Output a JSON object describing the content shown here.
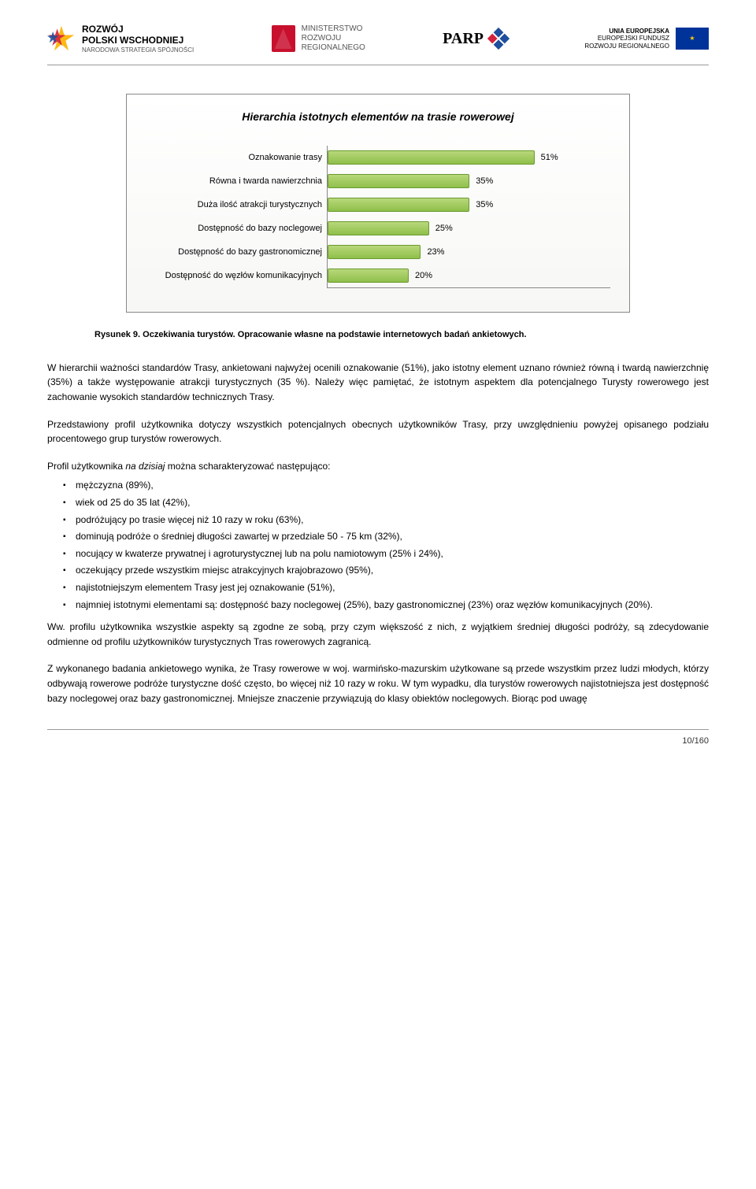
{
  "header": {
    "logo1_line1": "ROZWÓJ",
    "logo1_line2": "POLSKI WSCHODNIEJ",
    "logo1_sub": "NARODOWA STRATEGIA SPÓJNOŚCI",
    "logo2_line1": "MINISTERSTWO",
    "logo2_line2": "ROZWOJU",
    "logo2_line3": "REGIONALNEGO",
    "logo3": "PARP",
    "logo4_line1": "UNIA EUROPEJSKA",
    "logo4_line2": "EUROPEJSKI FUNDUSZ",
    "logo4_line3": "ROZWOJU REGIONALNEGO"
  },
  "chart": {
    "type": "horizontal-bar",
    "title": "Hierarchia istotnych elementów na trasie rowerowej",
    "categories": [
      "Oznakowanie trasy",
      "Równa i twarda nawierzchnia",
      "Duża ilość atrakcji turystycznych",
      "Dostępność do bazy noclegowej",
      "Dostępność do bazy gastronomicznej",
      "Dostępność do węzłów komunikacyjnych"
    ],
    "values": [
      51,
      35,
      35,
      25,
      23,
      20
    ],
    "value_labels": [
      "51%",
      "35%",
      "35%",
      "25%",
      "23%",
      "20%"
    ],
    "xmax": 60,
    "bar_color_top": "#b8d87a",
    "bar_color_bottom": "#8fbf4a",
    "bar_border": "#6a9a2f",
    "axis_color": "#888888",
    "background_gradient_top": "#ffffff",
    "background_gradient_bottom": "#f7f7f5",
    "label_fontsize": 11,
    "title_fontsize": 14
  },
  "caption": "Rysunek 9. Oczekiwania turystów. Opracowanie własne na podstawie internetowych badań ankietowych.",
  "para1": "W hierarchii ważności standardów Trasy, ankietowani najwyżej ocenili oznakowanie (51%), jako istotny element uznano również równą i twardą nawierzchnię (35%) a także występowanie atrakcji turystycznych (35 %). Należy więc pamiętać, że istotnym aspektem dla potencjalnego Turysty rowerowego jest zachowanie wysokich standardów technicznych Trasy.",
  "para2": "Przedstawiony profil użytkownika dotyczy wszystkich potencjalnych obecnych użytkowników Trasy, przy uwzględnieniu powyżej opisanego podziału procentowego grup turystów rowerowych.",
  "para3_prefix": "Profil użytkownika ",
  "para3_italic": "na dzisiaj",
  "para3_suffix": " można scharakteryzować następująco:",
  "bullets": [
    "mężczyzna (89%),",
    "wiek od 25 do 35 lat (42%),",
    "podróżujący po trasie więcej niż 10 razy w roku (63%),",
    "dominują podróże o średniej długości zawartej w przedziale 50 - 75 km (32%),",
    "nocujący w kwaterze prywatnej i agroturystycznej lub na polu namiotowym (25% i 24%),",
    "oczekujący przede wszystkim miejsc atrakcyjnych krajobrazowo (95%),",
    "najistotniejszym elementem Trasy jest jej oznakowanie (51%),",
    "najmniej istotnymi elementami są: dostępność bazy noclegowej (25%), bazy gastronomicznej (23%) oraz węzłów komunikacyjnych (20%)."
  ],
  "para4": "Ww. profilu użytkownika wszystkie aspekty są zgodne ze sobą, przy czym większość z nich, z wyjątkiem średniej długości podróży, są zdecydowanie odmienne od profilu użytkowników turystycznych Tras rowerowych zagranicą.",
  "para5": "Z wykonanego badania ankietowego wynika, że Trasy rowerowe w woj. warmińsko-mazurskim użytkowane są przede wszystkim przez ludzi młodych, którzy odbywają rowerowe podróże turystyczne dość często, bo więcej niż 10 razy w roku. W tym wypadku, dla turystów rowerowych najistotniejsza jest dostępność bazy noclegowej oraz bazy gastronomicznej. Mniejsze znaczenie przywiązują do klasy obiektów noclegowych. Biorąc pod uwagę",
  "footer": "10/160"
}
